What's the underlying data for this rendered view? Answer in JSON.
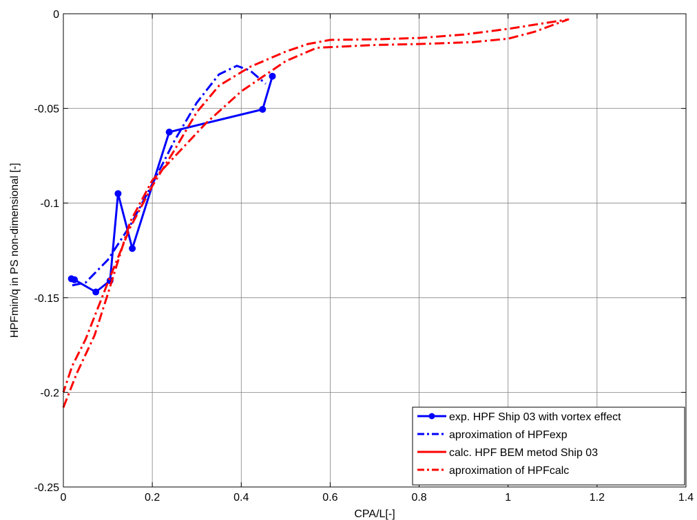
{
  "chart_data": {
    "type": "line",
    "title": "",
    "xlabel": "CPA/L[-]",
    "ylabel": "HPFmin/q in PS non-dimensional [-]",
    "xlim": [
      0,
      1.4
    ],
    "ylim": [
      -0.25,
      0
    ],
    "xticks": [
      0,
      0.2,
      0.4,
      0.6,
      0.8,
      1,
      1.2,
      1.4
    ],
    "xtick_labels": [
      "0",
      "0.2",
      "0.4",
      "0.6",
      "0.8",
      "1",
      "1.2",
      "1.4"
    ],
    "yticks": [
      -0.25,
      -0.2,
      -0.15,
      -0.1,
      -0.05,
      0
    ],
    "ytick_labels": [
      "-0.25",
      "-0.2",
      "-0.15",
      "-0.1",
      "-0.05",
      "0"
    ],
    "grid": true,
    "legend_position": "bottom-right",
    "series": [
      {
        "name": "exp. HPF Ship 03 with vortex effect",
        "color": "#0000ff",
        "style": "solid",
        "marker": "circle",
        "x": [
          0.018,
          0.025,
          0.073,
          0.105,
          0.123,
          0.155,
          0.238,
          0.448,
          0.47
        ],
        "y": [
          -0.14,
          -0.1405,
          -0.147,
          -0.141,
          -0.095,
          -0.124,
          -0.0625,
          -0.0505,
          -0.033
        ]
      },
      {
        "name": "aproximation of HPFexp",
        "color": "#0000ff",
        "style": "dashdot",
        "marker": "none",
        "x": [
          0.02,
          0.05,
          0.1,
          0.15,
          0.2,
          0.25,
          0.3,
          0.35,
          0.39,
          0.42,
          0.44,
          0.455
        ],
        "y": [
          -0.1435,
          -0.142,
          -0.13,
          -0.112,
          -0.09,
          -0.067,
          -0.047,
          -0.032,
          -0.0275,
          -0.03,
          -0.034,
          -0.037
        ]
      },
      {
        "name": "calc. HPF BEM metod Ship 03",
        "color": "#ff0000",
        "style": "solid",
        "marker": "none",
        "x": [],
        "y": []
      },
      {
        "name": "aproximation of HPFcalc",
        "color": "#ff0000",
        "style": "dashdot",
        "marker": "none",
        "x": [
          0,
          0.03,
          0.07,
          0.1,
          0.15,
          0.2,
          0.26,
          0.32,
          0.4,
          0.5,
          0.57,
          0.7,
          0.8,
          0.92,
          1.0,
          1.06,
          1.1,
          1.135,
          1.08,
          1.0,
          0.9,
          0.8,
          0.7,
          0.6,
          0.55,
          0.5,
          0.42,
          0.35,
          0.3,
          0.25,
          0.2,
          0.15,
          0.1,
          0.05,
          0.02,
          0
        ],
        "y": [
          -0.208,
          -0.19,
          -0.17,
          -0.148,
          -0.11,
          -0.088,
          -0.073,
          -0.058,
          -0.041,
          -0.025,
          -0.018,
          -0.0165,
          -0.016,
          -0.015,
          -0.0132,
          -0.0095,
          -0.006,
          -0.003,
          -0.005,
          -0.008,
          -0.011,
          -0.0128,
          -0.0135,
          -0.0138,
          -0.016,
          -0.02,
          -0.028,
          -0.038,
          -0.052,
          -0.072,
          -0.091,
          -0.113,
          -0.142,
          -0.172,
          -0.186,
          -0.2
        ]
      }
    ]
  }
}
